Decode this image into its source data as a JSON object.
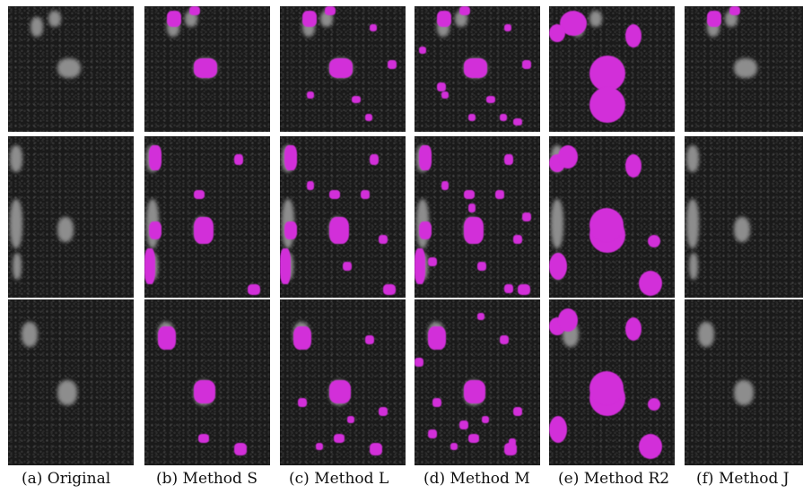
{
  "captions": {
    "a": "(a) Original",
    "b": "(b) Method S",
    "c": "(c) Method L",
    "d": "(d) Method M",
    "e": "(e) Method R2",
    "f": "(f) Method J"
  },
  "colors": {
    "overlay": "#d22fd9",
    "background": "#141414",
    "tissue": "#8d8d8d"
  }
}
